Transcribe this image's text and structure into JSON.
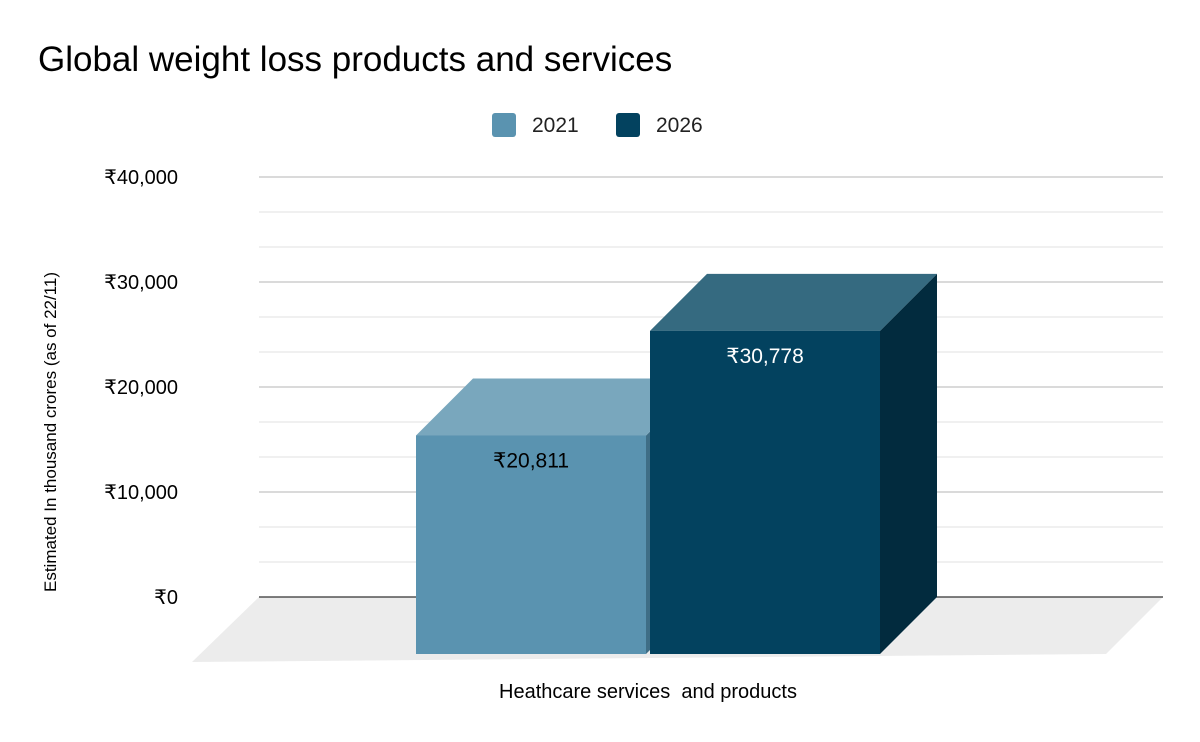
{
  "chart_data": {
    "type": "bar",
    "style": "3d",
    "title": "Global weight loss products and services",
    "xlabel": "",
    "ylabel": "Estimated In thousand crores (as of 22/11)",
    "categories": [
      "Heathcare services  and products"
    ],
    "series": [
      {
        "name": "2021",
        "values": [
          20811
        ],
        "data_labels": [
          "₹20,811"
        ],
        "color": "#5a93b0",
        "top_color": "#79a7bd",
        "side_color": "#3f6e86",
        "label_color": "#000000"
      },
      {
        "name": "2026",
        "values": [
          30778
        ],
        "data_labels": [
          "₹30,778"
        ],
        "color": "#03425f",
        "top_color": "#356a80",
        "side_color": "#022b3e",
        "label_color": "#ffffff"
      }
    ],
    "ylim": [
      0,
      40000
    ],
    "y_ticks": [
      0,
      10000,
      20000,
      30000,
      40000
    ],
    "y_tick_labels": [
      "₹0",
      "₹10,000",
      "₹20,000",
      "₹30,000",
      "₹40,000"
    ],
    "grid": true,
    "minor_grid": true,
    "legend_position": "top",
    "floor_color": "#ececec"
  }
}
